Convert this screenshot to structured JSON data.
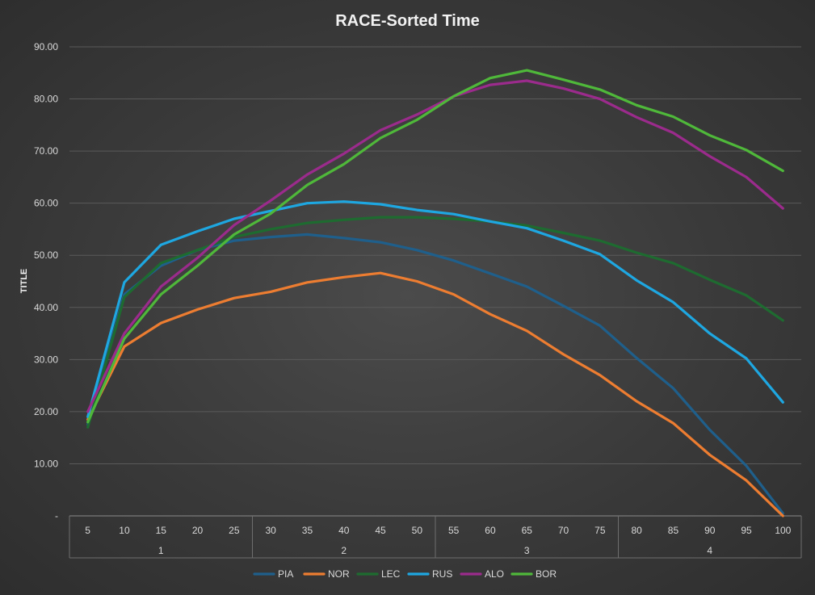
{
  "chart_data": {
    "type": "line",
    "title": "RACE-Sorted Time",
    "ylabel": "TITLE",
    "xlabel": "",
    "ylim": [
      0,
      90
    ],
    "y_ticks": [
      "-",
      "10.00",
      "20.00",
      "30.00",
      "40.00",
      "50.00",
      "60.00",
      "70.00",
      "80.00",
      "90.00"
    ],
    "x": [
      "5",
      "10",
      "15",
      "20",
      "25",
      "30",
      "35",
      "40",
      "45",
      "50",
      "55",
      "60",
      "65",
      "70",
      "75",
      "80",
      "85",
      "90",
      "95",
      "100"
    ],
    "groups": [
      {
        "label": "1",
        "span": [
          0,
          4
        ]
      },
      {
        "label": "2",
        "span": [
          5,
          9
        ]
      },
      {
        "label": "3",
        "span": [
          10,
          14
        ]
      },
      {
        "label": "4",
        "span": [
          15,
          19
        ]
      }
    ],
    "grid": true,
    "legend_position": "bottom",
    "series": [
      {
        "name": "PIA",
        "color": "#1f5f8b",
        "values": [
          17.5,
          42.5,
          48.0,
          51.0,
          52.8,
          53.5,
          54.0,
          53.3,
          52.5,
          51.0,
          49.0,
          46.5,
          44.0,
          40.3,
          36.5,
          30.3,
          24.5,
          16.5,
          9.6,
          0.5
        ]
      },
      {
        "name": "NOR",
        "color": "#ed7d31",
        "values": [
          18.5,
          32.5,
          37.0,
          39.6,
          41.8,
          43.0,
          44.8,
          45.8,
          46.6,
          45.0,
          42.5,
          38.7,
          35.5,
          31.0,
          27.0,
          22.0,
          17.8,
          11.7,
          6.8,
          0.0
        ]
      },
      {
        "name": "LEC",
        "color": "#1e6b30",
        "values": [
          17.0,
          42.0,
          48.5,
          51.0,
          53.5,
          55.0,
          56.2,
          56.8,
          57.3,
          57.3,
          57.0,
          56.5,
          55.7,
          54.3,
          52.8,
          50.5,
          48.5,
          45.3,
          42.3,
          37.5
        ]
      },
      {
        "name": "RUS",
        "color": "#1ea7e1",
        "values": [
          19.0,
          44.8,
          52.0,
          54.6,
          57.0,
          58.5,
          60.0,
          60.3,
          59.8,
          58.7,
          57.9,
          56.5,
          55.2,
          52.8,
          50.2,
          45.2,
          41.0,
          35.0,
          30.2,
          21.8
        ]
      },
      {
        "name": "ALO",
        "color": "#9b2b8c",
        "values": [
          20.0,
          35.0,
          44.0,
          49.5,
          55.8,
          60.5,
          65.5,
          69.5,
          74.0,
          77.0,
          80.5,
          82.7,
          83.5,
          82.0,
          80.0,
          76.5,
          73.5,
          69.0,
          65.0,
          59.0
        ]
      },
      {
        "name": "BOR",
        "color": "#4fb83a",
        "values": [
          18.0,
          34.0,
          42.5,
          48.0,
          54.0,
          58.0,
          63.5,
          67.5,
          72.5,
          76.0,
          80.5,
          84.0,
          85.5,
          83.7,
          81.8,
          78.8,
          76.6,
          73.0,
          70.2,
          66.2
        ]
      }
    ]
  }
}
